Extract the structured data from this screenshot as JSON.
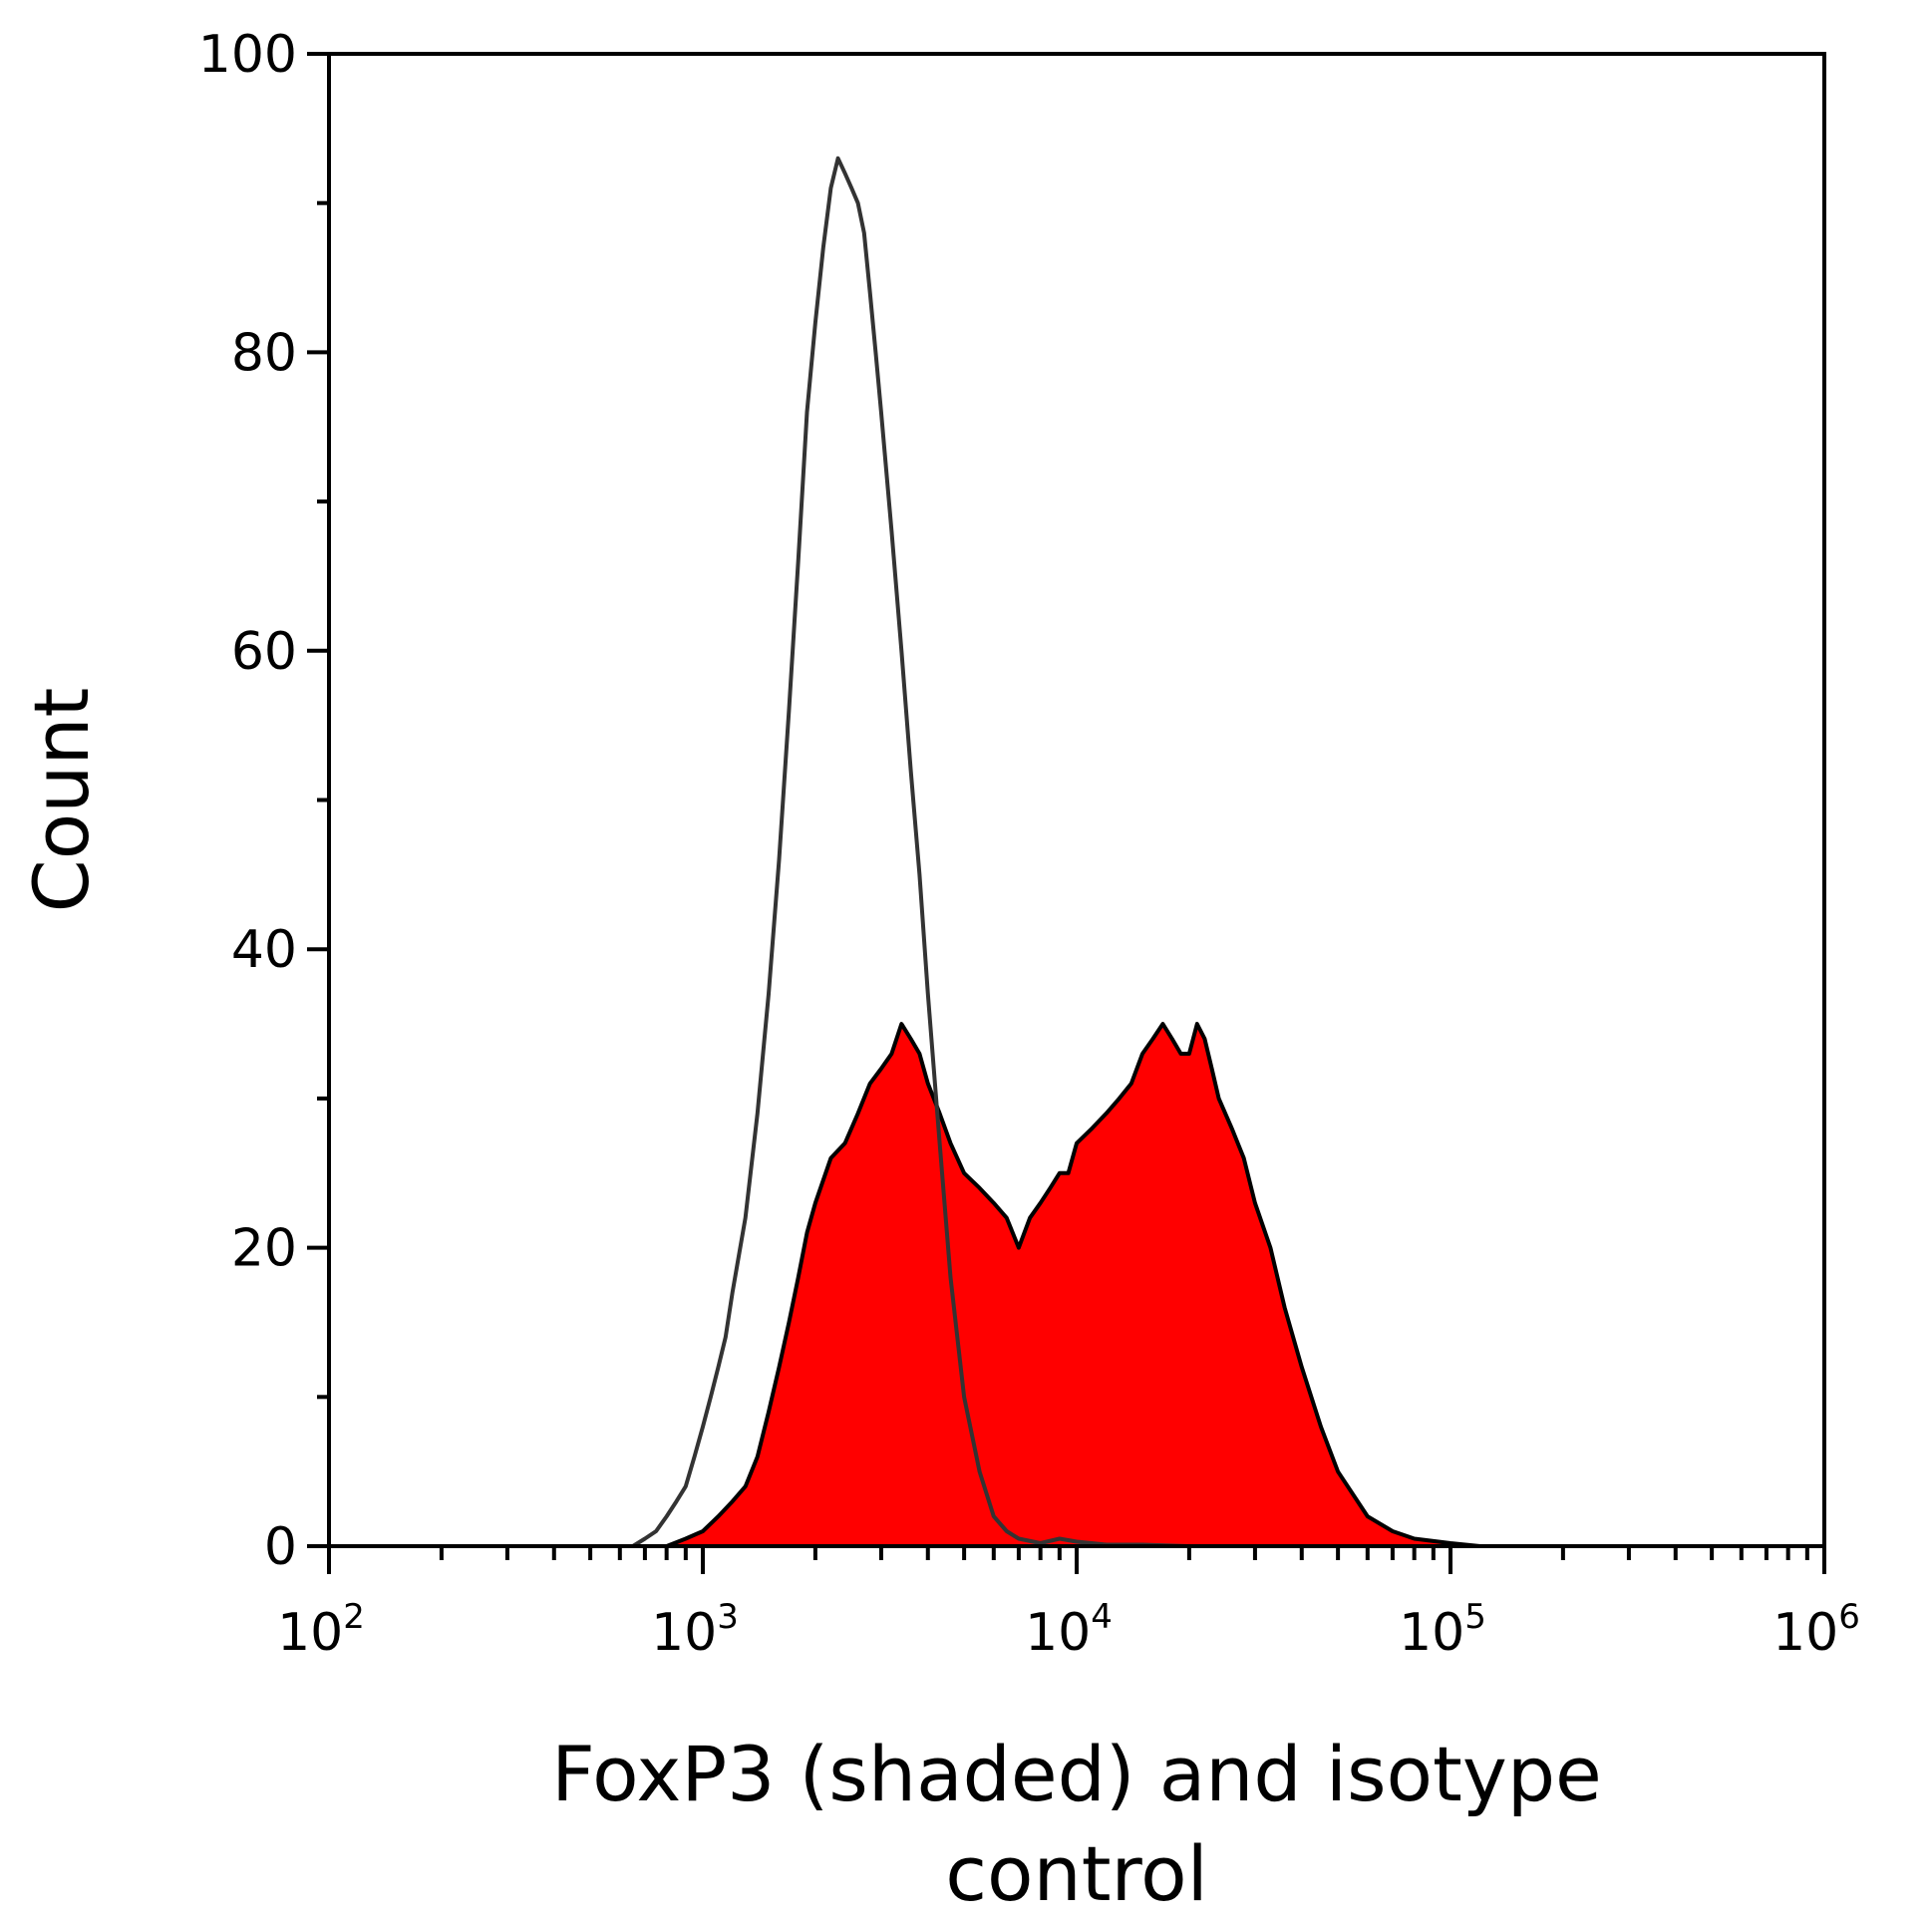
{
  "chart_data": {
    "type": "area",
    "title": "",
    "xlabel_lines": [
      "FoxP3 (shaded) and isotype",
      "control"
    ],
    "ylabel": "Count",
    "x_scale": "log",
    "xlim": [
      100,
      1000000
    ],
    "ylim": [
      0,
      100
    ],
    "x_ticks": [
      {
        "base": "10",
        "exp": "2",
        "value": 100
      },
      {
        "base": "10",
        "exp": "3",
        "value": 1000
      },
      {
        "base": "10",
        "exp": "4",
        "value": 10000
      },
      {
        "base": "10",
        "exp": "5",
        "value": 100000
      },
      {
        "base": "10",
        "exp": "6",
        "value": 1000000
      }
    ],
    "y_ticks": [
      "0",
      "20",
      "40",
      "60",
      "80",
      "100"
    ],
    "grid": false,
    "legend": "none",
    "colors": {
      "shaded_fill": "#ff0000",
      "shaded_line": "#000000",
      "isotype_line": "#333333",
      "axis": "#000000"
    },
    "series": [
      {
        "style": "shaded",
        "x": [
          100,
          800,
          900,
          1000,
          1100,
          1200,
          1300,
          1400,
          1500,
          1600,
          1700,
          1800,
          1900,
          2000,
          2200,
          2400,
          2600,
          2800,
          3000,
          3200,
          3400,
          3600,
          3800,
          4000,
          4300,
          4600,
          5000,
          5500,
          6000,
          6500,
          7000,
          7500,
          8000,
          8500,
          9000,
          9500,
          10000,
          11000,
          12000,
          13000,
          14000,
          15000,
          16000,
          17000,
          18000,
          19000,
          20000,
          21000,
          22000,
          23000,
          24000,
          26000,
          28000,
          30000,
          33000,
          36000,
          40000,
          45000,
          50000,
          60000,
          70000,
          80000,
          100000,
          120000,
          1000000
        ],
        "y": [
          0,
          0,
          0.5,
          1,
          2,
          3,
          4,
          6,
          9,
          12,
          15,
          18,
          21,
          23,
          26,
          27,
          29,
          31,
          32,
          33,
          35,
          34,
          33,
          31,
          29,
          27,
          25,
          24,
          23,
          22,
          20,
          22,
          23,
          24,
          25,
          25,
          27,
          28,
          29,
          30,
          31,
          33,
          34,
          35,
          34,
          33,
          33,
          35,
          34,
          32,
          30,
          28,
          26,
          23,
          20,
          16,
          12,
          8,
          5,
          2,
          1,
          0.5,
          0.2,
          0,
          0
        ]
      },
      {
        "style": "outline",
        "x": [
          100,
          650,
          700,
          750,
          800,
          850,
          900,
          950,
          1000,
          1050,
          1100,
          1150,
          1200,
          1300,
          1400,
          1500,
          1600,
          1700,
          1800,
          1900,
          2000,
          2100,
          2200,
          2300,
          2400,
          2500,
          2600,
          2700,
          2800,
          2900,
          3000,
          3200,
          3400,
          3600,
          3800,
          4000,
          4300,
          4600,
          5000,
          5500,
          6000,
          6500,
          7000,
          8000,
          9000,
          10000,
          12000,
          15000,
          20000,
          30000,
          1000000
        ],
        "y": [
          0,
          0,
          0.5,
          1,
          2,
          3,
          4,
          6,
          8,
          10,
          12,
          14,
          17,
          22,
          29,
          37,
          46,
          56,
          66,
          76,
          82,
          87,
          91,
          93,
          92,
          91,
          90,
          88,
          84,
          80,
          76,
          68,
          60,
          52,
          45,
          37,
          27,
          18,
          10,
          5,
          2,
          1,
          0.5,
          0.2,
          0.5,
          0.3,
          0.1,
          0.1,
          0,
          0,
          0
        ]
      }
    ]
  }
}
